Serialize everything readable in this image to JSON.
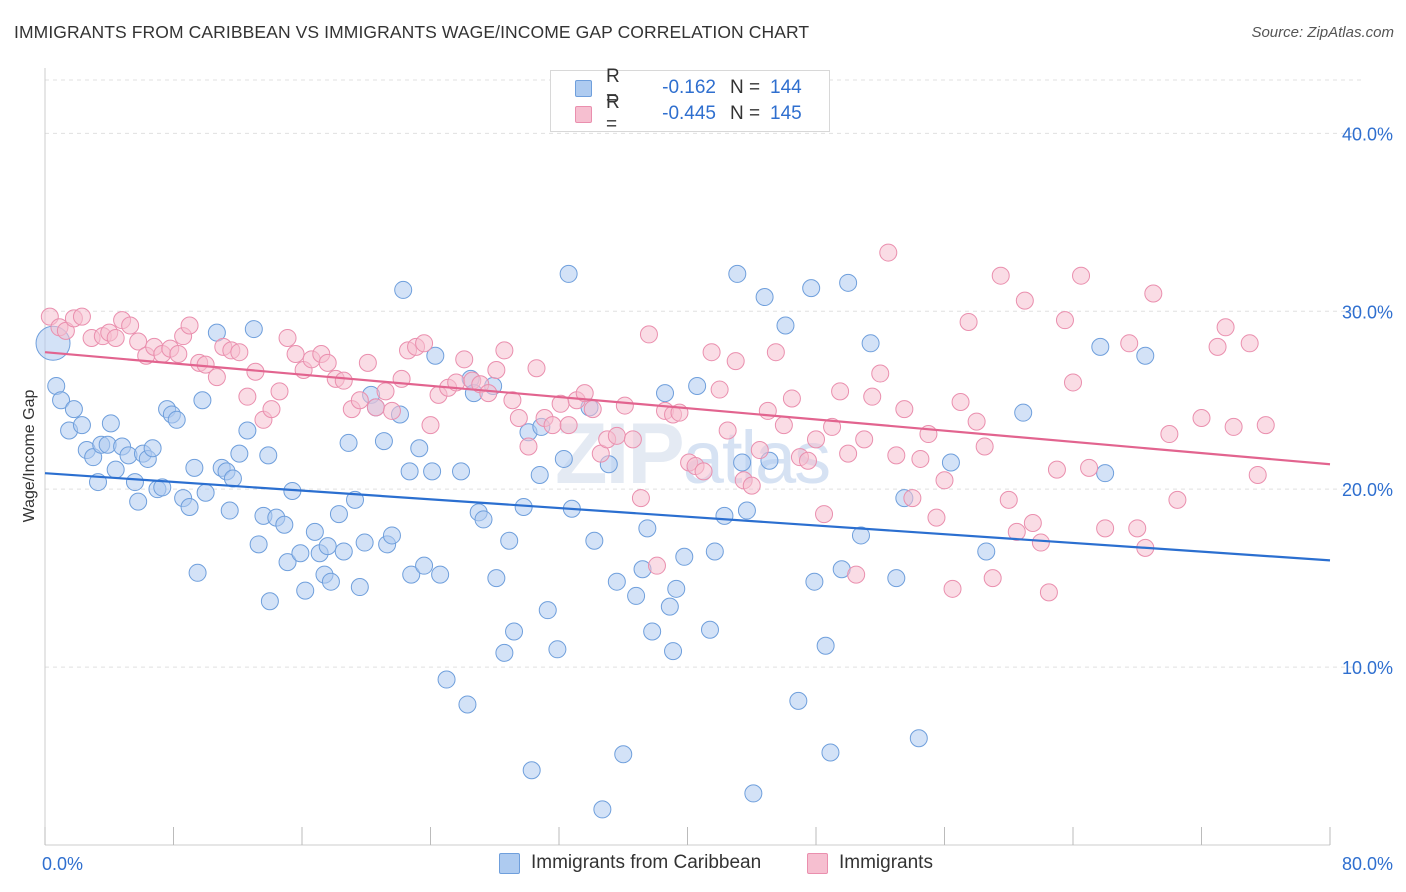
{
  "title": "IMMIGRANTS FROM CARIBBEAN VS IMMIGRANTS WAGE/INCOME GAP CORRELATION CHART",
  "source": "Source: ZipAtlas.com",
  "watermark": {
    "bold": "ZIP",
    "light": "atlas"
  },
  "legend": {
    "rows": [
      {
        "r_label": "R =",
        "r_value": "-0.162",
        "n_label": "N =",
        "n_value": "144"
      },
      {
        "r_label": "R =",
        "r_value": "-0.445",
        "n_label": "N =",
        "n_value": "145"
      }
    ]
  },
  "bottom_legend": [
    {
      "label": "Immigrants from Caribbean"
    },
    {
      "label": "Immigrants"
    }
  ],
  "colors": {
    "blue_fill": "#aecbf0",
    "blue_stroke": "#6f9fdc",
    "blue_line": "#2b6fd0",
    "pink_fill": "#f6bfd0",
    "pink_stroke": "#ea8fae",
    "pink_line": "#e2648f",
    "axis_text": "#2f6fcf",
    "grid": "#e0e0e0"
  },
  "chart_data": {
    "type": "scatter",
    "title": "IMMIGRANTS FROM CARIBBEAN VS IMMIGRANTS WAGE/INCOME GAP CORRELATION CHART",
    "xlabel": "",
    "ylabel": "Wage/Income Gap",
    "xlim": [
      0,
      80
    ],
    "ylim": [
      0,
      43
    ],
    "x_tick_labels": {
      "left": "0.0%",
      "right": "80.0%"
    },
    "y_ticks": [
      {
        "value": 10,
        "label": "10.0%"
      },
      {
        "value": 20,
        "label": "20.0%"
      },
      {
        "value": 30,
        "label": "30.0%"
      },
      {
        "value": 40,
        "label": "40.0%"
      }
    ],
    "series": [
      {
        "name": "Immigrants from Caribbean",
        "r": -0.162,
        "n": 144,
        "trend": {
          "x0": 0,
          "y0": 20.9,
          "x1": 80,
          "y1": 16.0
        },
        "points": [
          [
            0.5,
            28.2
          ],
          [
            0.7,
            25.8
          ],
          [
            1.0,
            25.0
          ],
          [
            1.5,
            23.3
          ],
          [
            1.8,
            24.5
          ],
          [
            2.3,
            23.6
          ],
          [
            2.6,
            22.2
          ],
          [
            3.0,
            21.8
          ],
          [
            3.3,
            20.4
          ],
          [
            3.5,
            22.5
          ],
          [
            3.9,
            22.5
          ],
          [
            4.1,
            23.7
          ],
          [
            4.4,
            21.1
          ],
          [
            4.8,
            22.4
          ],
          [
            5.2,
            21.9
          ],
          [
            5.6,
            20.4
          ],
          [
            5.8,
            19.3
          ],
          [
            6.1,
            22.0
          ],
          [
            6.4,
            21.7
          ],
          [
            6.7,
            22.3
          ],
          [
            7.0,
            20.0
          ],
          [
            7.3,
            20.1
          ],
          [
            7.6,
            24.5
          ],
          [
            7.9,
            24.2
          ],
          [
            8.2,
            23.9
          ],
          [
            8.6,
            19.5
          ],
          [
            9.0,
            19.0
          ],
          [
            9.3,
            21.2
          ],
          [
            9.5,
            15.3
          ],
          [
            9.8,
            25.0
          ],
          [
            10.0,
            19.8
          ],
          [
            10.7,
            28.8
          ],
          [
            11.0,
            21.2
          ],
          [
            11.3,
            21.0
          ],
          [
            11.5,
            18.8
          ],
          [
            11.7,
            20.6
          ],
          [
            12.1,
            22.0
          ],
          [
            12.6,
            23.3
          ],
          [
            13.0,
            29.0
          ],
          [
            13.3,
            16.9
          ],
          [
            13.6,
            18.5
          ],
          [
            13.9,
            21.9
          ],
          [
            14.0,
            13.7
          ],
          [
            14.4,
            18.4
          ],
          [
            14.9,
            18.0
          ],
          [
            15.1,
            15.9
          ],
          [
            15.4,
            19.9
          ],
          [
            15.9,
            16.4
          ],
          [
            16.2,
            14.3
          ],
          [
            16.8,
            17.6
          ],
          [
            17.1,
            16.4
          ],
          [
            17.4,
            15.2
          ],
          [
            17.6,
            16.8
          ],
          [
            17.8,
            14.8
          ],
          [
            18.3,
            18.6
          ],
          [
            18.6,
            16.5
          ],
          [
            18.9,
            22.6
          ],
          [
            19.3,
            19.4
          ],
          [
            19.6,
            14.5
          ],
          [
            19.9,
            17.0
          ],
          [
            20.3,
            25.3
          ],
          [
            20.6,
            24.6
          ],
          [
            21.1,
            22.7
          ],
          [
            21.3,
            16.9
          ],
          [
            21.6,
            17.4
          ],
          [
            22.1,
            24.2
          ],
          [
            22.3,
            31.2
          ],
          [
            22.7,
            21.0
          ],
          [
            22.8,
            15.2
          ],
          [
            23.3,
            22.3
          ],
          [
            23.6,
            15.7
          ],
          [
            24.1,
            21.0
          ],
          [
            24.3,
            27.5
          ],
          [
            24.6,
            15.2
          ],
          [
            25.0,
            9.3
          ],
          [
            25.9,
            21.0
          ],
          [
            26.3,
            7.9
          ],
          [
            26.5,
            26.2
          ],
          [
            26.7,
            25.4
          ],
          [
            27.0,
            18.7
          ],
          [
            27.3,
            18.3
          ],
          [
            27.9,
            25.8
          ],
          [
            28.1,
            15.0
          ],
          [
            28.6,
            10.8
          ],
          [
            28.9,
            17.1
          ],
          [
            29.2,
            12.0
          ],
          [
            29.8,
            19.0
          ],
          [
            30.1,
            23.2
          ],
          [
            30.3,
            4.2
          ],
          [
            30.8,
            20.8
          ],
          [
            30.9,
            23.5
          ],
          [
            31.3,
            13.2
          ],
          [
            31.9,
            11.0
          ],
          [
            32.3,
            21.7
          ],
          [
            32.6,
            32.1
          ],
          [
            32.8,
            18.9
          ],
          [
            33.9,
            24.6
          ],
          [
            34.2,
            17.1
          ],
          [
            34.7,
            2.0
          ],
          [
            35.1,
            21.4
          ],
          [
            35.6,
            14.8
          ],
          [
            36.0,
            5.1
          ],
          [
            36.8,
            14.0
          ],
          [
            37.2,
            15.5
          ],
          [
            37.5,
            17.8
          ],
          [
            37.8,
            12.0
          ],
          [
            38.6,
            25.4
          ],
          [
            38.9,
            13.4
          ],
          [
            39.1,
            10.9
          ],
          [
            39.3,
            14.4
          ],
          [
            39.8,
            16.2
          ],
          [
            40.6,
            25.8
          ],
          [
            41.4,
            12.1
          ],
          [
            41.7,
            16.5
          ],
          [
            42.3,
            18.5
          ],
          [
            43.1,
            32.1
          ],
          [
            43.4,
            21.5
          ],
          [
            43.7,
            18.8
          ],
          [
            44.1,
            2.9
          ],
          [
            44.8,
            30.8
          ],
          [
            45.1,
            21.6
          ],
          [
            46.1,
            29.2
          ],
          [
            46.9,
            8.1
          ],
          [
            47.7,
            31.3
          ],
          [
            47.9,
            14.8
          ],
          [
            48.6,
            11.2
          ],
          [
            48.9,
            5.2
          ],
          [
            49.6,
            15.5
          ],
          [
            50.0,
            31.6
          ],
          [
            50.8,
            17.4
          ],
          [
            51.4,
            28.2
          ],
          [
            53.0,
            15.0
          ],
          [
            53.5,
            19.5
          ],
          [
            54.4,
            6.0
          ],
          [
            56.4,
            21.5
          ],
          [
            58.6,
            16.5
          ],
          [
            60.9,
            24.3
          ],
          [
            65.7,
            28.0
          ],
          [
            66.0,
            20.9
          ],
          [
            68.5,
            27.5
          ]
        ]
      },
      {
        "name": "Immigrants",
        "r": -0.445,
        "n": 145,
        "trend": {
          "x0": 0,
          "y0": 27.7,
          "x1": 80,
          "y1": 21.4
        },
        "points": [
          [
            0.3,
            29.7
          ],
          [
            0.9,
            29.1
          ],
          [
            1.3,
            28.9
          ],
          [
            1.8,
            29.6
          ],
          [
            2.3,
            29.7
          ],
          [
            2.9,
            28.5
          ],
          [
            3.6,
            28.6
          ],
          [
            4.0,
            28.8
          ],
          [
            4.4,
            28.5
          ],
          [
            4.8,
            29.5
          ],
          [
            5.3,
            29.2
          ],
          [
            5.8,
            28.3
          ],
          [
            6.3,
            27.5
          ],
          [
            6.8,
            28.0
          ],
          [
            7.3,
            27.6
          ],
          [
            7.8,
            27.9
          ],
          [
            8.3,
            27.6
          ],
          [
            8.6,
            28.6
          ],
          [
            9.0,
            29.2
          ],
          [
            9.6,
            27.1
          ],
          [
            10.0,
            27.0
          ],
          [
            10.7,
            26.3
          ],
          [
            11.1,
            28.0
          ],
          [
            11.6,
            27.8
          ],
          [
            12.1,
            27.7
          ],
          [
            12.6,
            25.2
          ],
          [
            13.1,
            26.6
          ],
          [
            13.6,
            23.9
          ],
          [
            14.1,
            24.5
          ],
          [
            14.6,
            25.5
          ],
          [
            15.1,
            28.5
          ],
          [
            15.6,
            27.6
          ],
          [
            16.1,
            26.7
          ],
          [
            16.6,
            27.3
          ],
          [
            17.2,
            27.6
          ],
          [
            17.6,
            27.1
          ],
          [
            18.1,
            26.2
          ],
          [
            18.6,
            26.1
          ],
          [
            19.1,
            24.5
          ],
          [
            19.6,
            25.0
          ],
          [
            20.1,
            27.1
          ],
          [
            20.6,
            24.6
          ],
          [
            21.2,
            25.5
          ],
          [
            21.6,
            24.4
          ],
          [
            22.2,
            26.2
          ],
          [
            22.6,
            27.8
          ],
          [
            23.1,
            28.0
          ],
          [
            23.6,
            28.2
          ],
          [
            24.0,
            23.6
          ],
          [
            24.5,
            25.3
          ],
          [
            25.1,
            25.7
          ],
          [
            25.6,
            26.0
          ],
          [
            26.1,
            27.3
          ],
          [
            26.6,
            26.1
          ],
          [
            27.1,
            25.9
          ],
          [
            27.6,
            25.4
          ],
          [
            28.1,
            26.7
          ],
          [
            28.6,
            27.8
          ],
          [
            29.1,
            25.0
          ],
          [
            29.5,
            24.0
          ],
          [
            30.1,
            22.4
          ],
          [
            30.6,
            26.8
          ],
          [
            31.1,
            24.0
          ],
          [
            31.6,
            23.6
          ],
          [
            32.1,
            24.8
          ],
          [
            32.6,
            23.6
          ],
          [
            33.1,
            25.0
          ],
          [
            33.6,
            25.4
          ],
          [
            34.1,
            24.5
          ],
          [
            34.6,
            22.0
          ],
          [
            35.0,
            22.8
          ],
          [
            35.6,
            23.0
          ],
          [
            36.1,
            24.7
          ],
          [
            36.6,
            22.8
          ],
          [
            37.1,
            19.5
          ],
          [
            37.6,
            28.7
          ],
          [
            38.1,
            15.7
          ],
          [
            38.6,
            24.4
          ],
          [
            39.1,
            24.2
          ],
          [
            39.5,
            24.3
          ],
          [
            40.1,
            21.5
          ],
          [
            40.5,
            21.3
          ],
          [
            41.0,
            21.0
          ],
          [
            41.5,
            27.7
          ],
          [
            42.0,
            25.6
          ],
          [
            42.5,
            23.3
          ],
          [
            43.0,
            27.2
          ],
          [
            43.5,
            20.5
          ],
          [
            44.0,
            20.2
          ],
          [
            44.5,
            22.2
          ],
          [
            45.0,
            24.4
          ],
          [
            45.5,
            27.7
          ],
          [
            46.0,
            23.6
          ],
          [
            46.5,
            25.1
          ],
          [
            47.0,
            21.8
          ],
          [
            47.5,
            21.6
          ],
          [
            48.0,
            22.8
          ],
          [
            48.5,
            18.6
          ],
          [
            49.0,
            23.5
          ],
          [
            49.5,
            25.5
          ],
          [
            50.0,
            22.0
          ],
          [
            50.5,
            15.2
          ],
          [
            51.0,
            22.8
          ],
          [
            51.5,
            25.2
          ],
          [
            52.0,
            26.5
          ],
          [
            52.5,
            33.3
          ],
          [
            53.0,
            21.9
          ],
          [
            53.5,
            24.5
          ],
          [
            54.0,
            19.5
          ],
          [
            54.5,
            21.7
          ],
          [
            55.0,
            23.1
          ],
          [
            55.5,
            18.4
          ],
          [
            56.0,
            20.5
          ],
          [
            56.5,
            14.4
          ],
          [
            57.0,
            24.9
          ],
          [
            57.5,
            29.4
          ],
          [
            58.0,
            23.8
          ],
          [
            58.5,
            22.4
          ],
          [
            59.0,
            15.0
          ],
          [
            59.5,
            32.0
          ],
          [
            60.0,
            19.4
          ],
          [
            60.5,
            17.6
          ],
          [
            61.0,
            30.6
          ],
          [
            61.5,
            18.1
          ],
          [
            62.0,
            17.0
          ],
          [
            62.5,
            14.2
          ],
          [
            63.0,
            21.1
          ],
          [
            63.5,
            29.5
          ],
          [
            64.0,
            26.0
          ],
          [
            64.5,
            32.0
          ],
          [
            65.0,
            21.2
          ],
          [
            66.0,
            17.8
          ],
          [
            67.5,
            28.2
          ],
          [
            68.0,
            17.8
          ],
          [
            68.5,
            16.7
          ],
          [
            69.0,
            31.0
          ],
          [
            70.0,
            23.1
          ],
          [
            70.5,
            19.4
          ],
          [
            72.0,
            24.0
          ],
          [
            73.0,
            28.0
          ],
          [
            73.5,
            29.1
          ],
          [
            74.0,
            23.5
          ],
          [
            75.0,
            28.2
          ],
          [
            75.5,
            20.8
          ],
          [
            76.0,
            23.6
          ]
        ]
      }
    ]
  }
}
